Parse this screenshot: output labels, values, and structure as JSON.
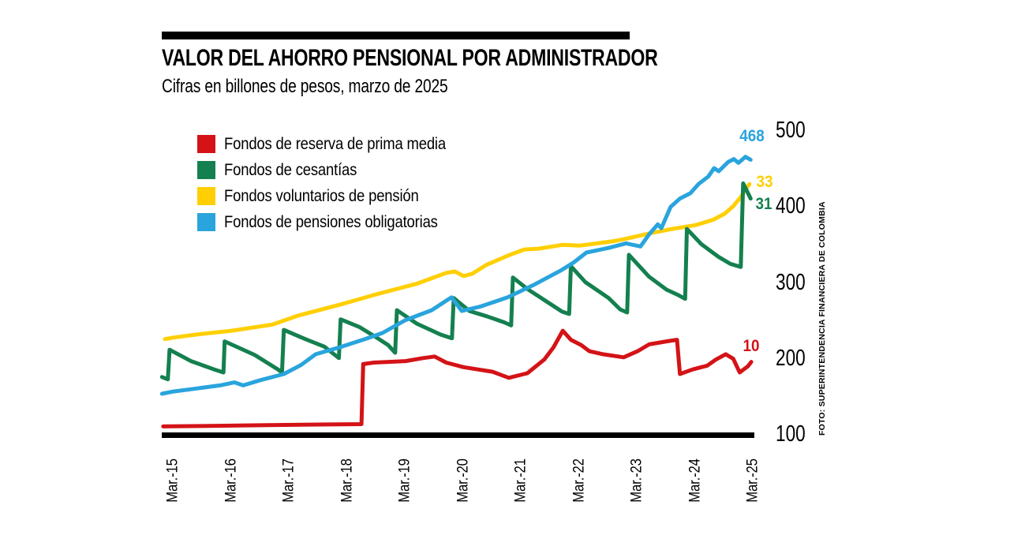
{
  "header": {
    "title": "VALOR DEL AHORRO PENSIONAL POR ADMINISTRADOR",
    "subtitle": "Cifras en billones de pesos, marzo de 2025"
  },
  "source_note": "FOTO: SUPERINTENDENCIA FINANCIERA DE COLOMBIA",
  "colors": {
    "reserva": "#d41317",
    "cesantias": "#14804f",
    "voluntarios": "#ffcf04",
    "obligatorias": "#29a4dd",
    "axis_bar": "#000000"
  },
  "chart_data": {
    "type": "line",
    "title": "VALOR DEL AHORRO PENSIONAL POR ADMINISTRADOR",
    "subtitle": "Cifras en billones de pesos, marzo de 2025",
    "x_tick_labels": [
      "Mar.-15",
      "Mar.-16",
      "Mar.-17",
      "Mar.-18",
      "Mar.-19",
      "Mar.-20",
      "Mar.-21",
      "Mar.-22",
      "Mar.-23",
      "Mar.-24",
      "Mar.-25"
    ],
    "x_tick_years": [
      2015,
      2016,
      2017,
      2018,
      2019,
      2020,
      2021,
      2022,
      2023,
      2024,
      2025
    ],
    "y_ticks": [
      100,
      200,
      300,
      400,
      500
    ],
    "ylim": [
      100,
      500
    ],
    "grid": false,
    "legend_position": "top-left",
    "series": [
      {
        "key": "reserva",
        "name": "Fondos de reserva de prima media",
        "color": "#d41317",
        "end_label": "10",
        "points": [
          [
            2014.82,
            110
          ],
          [
            2015.5,
            110.5
          ],
          [
            2016.5,
            111.5
          ],
          [
            2017.5,
            112.5
          ],
          [
            2018.24,
            113
          ],
          [
            2018.27,
            192
          ],
          [
            2018.45,
            194
          ],
          [
            2019.0,
            196
          ],
          [
            2019.3,
            200
          ],
          [
            2019.5,
            202
          ],
          [
            2019.7,
            194
          ],
          [
            2020.0,
            188
          ],
          [
            2020.5,
            182
          ],
          [
            2020.78,
            174
          ],
          [
            2021.1,
            180
          ],
          [
            2021.39,
            198
          ],
          [
            2021.55,
            214
          ],
          [
            2021.71,
            236
          ],
          [
            2021.85,
            224
          ],
          [
            2022.03,
            217
          ],
          [
            2022.17,
            209
          ],
          [
            2022.4,
            205
          ],
          [
            2022.76,
            201
          ],
          [
            2023.0,
            209
          ],
          [
            2023.2,
            218
          ],
          [
            2023.5,
            222
          ],
          [
            2023.68,
            224
          ],
          [
            2023.73,
            179
          ],
          [
            2023.95,
            185
          ],
          [
            2024.2,
            190
          ],
          [
            2024.35,
            198
          ],
          [
            2024.52,
            205
          ],
          [
            2024.65,
            199
          ],
          [
            2024.76,
            181
          ],
          [
            2024.9,
            189
          ],
          [
            2024.96,
            195
          ]
        ]
      },
      {
        "key": "cesantias",
        "name": "Fondos de cesantías",
        "color": "#14804f",
        "end_label": "31",
        "points": [
          [
            2014.8,
            175
          ],
          [
            2014.9,
            172
          ],
          [
            2014.93,
            211
          ],
          [
            2015.3,
            196
          ],
          [
            2015.7,
            185
          ],
          [
            2015.86,
            181
          ],
          [
            2015.88,
            222
          ],
          [
            2016.4,
            204
          ],
          [
            2016.8,
            185
          ],
          [
            2016.87,
            181
          ],
          [
            2016.9,
            237
          ],
          [
            2017.3,
            224
          ],
          [
            2017.6,
            215
          ],
          [
            2017.85,
            200
          ],
          [
            2017.88,
            251
          ],
          [
            2018.2,
            241
          ],
          [
            2018.5,
            227
          ],
          [
            2018.7,
            217
          ],
          [
            2018.82,
            207
          ],
          [
            2018.85,
            263
          ],
          [
            2019.2,
            245
          ],
          [
            2019.6,
            231
          ],
          [
            2019.8,
            226
          ],
          [
            2019.83,
            279
          ],
          [
            2020.1,
            262
          ],
          [
            2020.4,
            255
          ],
          [
            2020.7,
            247
          ],
          [
            2020.82,
            243
          ],
          [
            2020.85,
            306
          ],
          [
            2021.1,
            291
          ],
          [
            2021.4,
            276
          ],
          [
            2021.7,
            261
          ],
          [
            2021.82,
            258
          ],
          [
            2021.85,
            321
          ],
          [
            2022.1,
            300
          ],
          [
            2022.5,
            279
          ],
          [
            2022.7,
            264
          ],
          [
            2022.82,
            260
          ],
          [
            2022.85,
            336
          ],
          [
            2023.2,
            307
          ],
          [
            2023.5,
            290
          ],
          [
            2023.7,
            283
          ],
          [
            2023.82,
            278
          ],
          [
            2023.85,
            370
          ],
          [
            2024.1,
            350
          ],
          [
            2024.4,
            333
          ],
          [
            2024.6,
            324
          ],
          [
            2024.78,
            320
          ],
          [
            2024.82,
            430
          ],
          [
            2024.95,
            410
          ]
        ]
      },
      {
        "key": "voluntarios",
        "name": "Fondos voluntarios de pensión",
        "color": "#ffcf04",
        "end_label": "33",
        "points": [
          [
            2014.85,
            225
          ],
          [
            2015.0,
            227
          ],
          [
            2015.4,
            231
          ],
          [
            2016.0,
            236
          ],
          [
            2016.7,
            244
          ],
          [
            2017.15,
            256
          ],
          [
            2017.9,
            271
          ],
          [
            2018.5,
            284
          ],
          [
            2019.2,
            298
          ],
          [
            2019.7,
            312
          ],
          [
            2019.85,
            314
          ],
          [
            2020.0,
            308
          ],
          [
            2020.15,
            311
          ],
          [
            2020.4,
            323
          ],
          [
            2020.8,
            336
          ],
          [
            2021.05,
            343
          ],
          [
            2021.3,
            344
          ],
          [
            2021.7,
            349
          ],
          [
            2022.0,
            348
          ],
          [
            2022.6,
            354
          ],
          [
            2022.8,
            357
          ],
          [
            2023.2,
            364
          ],
          [
            2023.6,
            370
          ],
          [
            2024.0,
            375
          ],
          [
            2024.3,
            382
          ],
          [
            2024.5,
            390
          ],
          [
            2024.65,
            400
          ],
          [
            2024.78,
            412
          ],
          [
            2024.88,
            424
          ],
          [
            2024.93,
            429
          ]
        ]
      },
      {
        "key": "obligatorias",
        "name": "Fondos de pensiones obligatorias",
        "color": "#29a4dd",
        "end_label": "468",
        "points": [
          [
            2014.8,
            153
          ],
          [
            2015.0,
            156
          ],
          [
            2015.4,
            160
          ],
          [
            2015.8,
            164
          ],
          [
            2016.05,
            168
          ],
          [
            2016.2,
            164
          ],
          [
            2016.5,
            171
          ],
          [
            2016.9,
            179
          ],
          [
            2017.2,
            191
          ],
          [
            2017.45,
            205
          ],
          [
            2017.9,
            215
          ],
          [
            2018.3,
            225
          ],
          [
            2018.6,
            233
          ],
          [
            2019.0,
            250
          ],
          [
            2019.45,
            263
          ],
          [
            2019.79,
            280
          ],
          [
            2019.97,
            262
          ],
          [
            2020.3,
            268
          ],
          [
            2020.76,
            280
          ],
          [
            2021.2,
            296
          ],
          [
            2021.67,
            315
          ],
          [
            2021.9,
            326
          ],
          [
            2022.12,
            339
          ],
          [
            2022.5,
            345
          ],
          [
            2022.8,
            351
          ],
          [
            2023.05,
            347
          ],
          [
            2023.2,
            363
          ],
          [
            2023.35,
            376
          ],
          [
            2023.41,
            371
          ],
          [
            2023.57,
            399
          ],
          [
            2023.73,
            410
          ],
          [
            2023.91,
            417
          ],
          [
            2024.05,
            429
          ],
          [
            2024.22,
            439
          ],
          [
            2024.32,
            450
          ],
          [
            2024.4,
            446
          ],
          [
            2024.56,
            458
          ],
          [
            2024.66,
            462
          ],
          [
            2024.74,
            457
          ],
          [
            2024.86,
            465
          ],
          [
            2024.95,
            461
          ]
        ]
      }
    ]
  }
}
